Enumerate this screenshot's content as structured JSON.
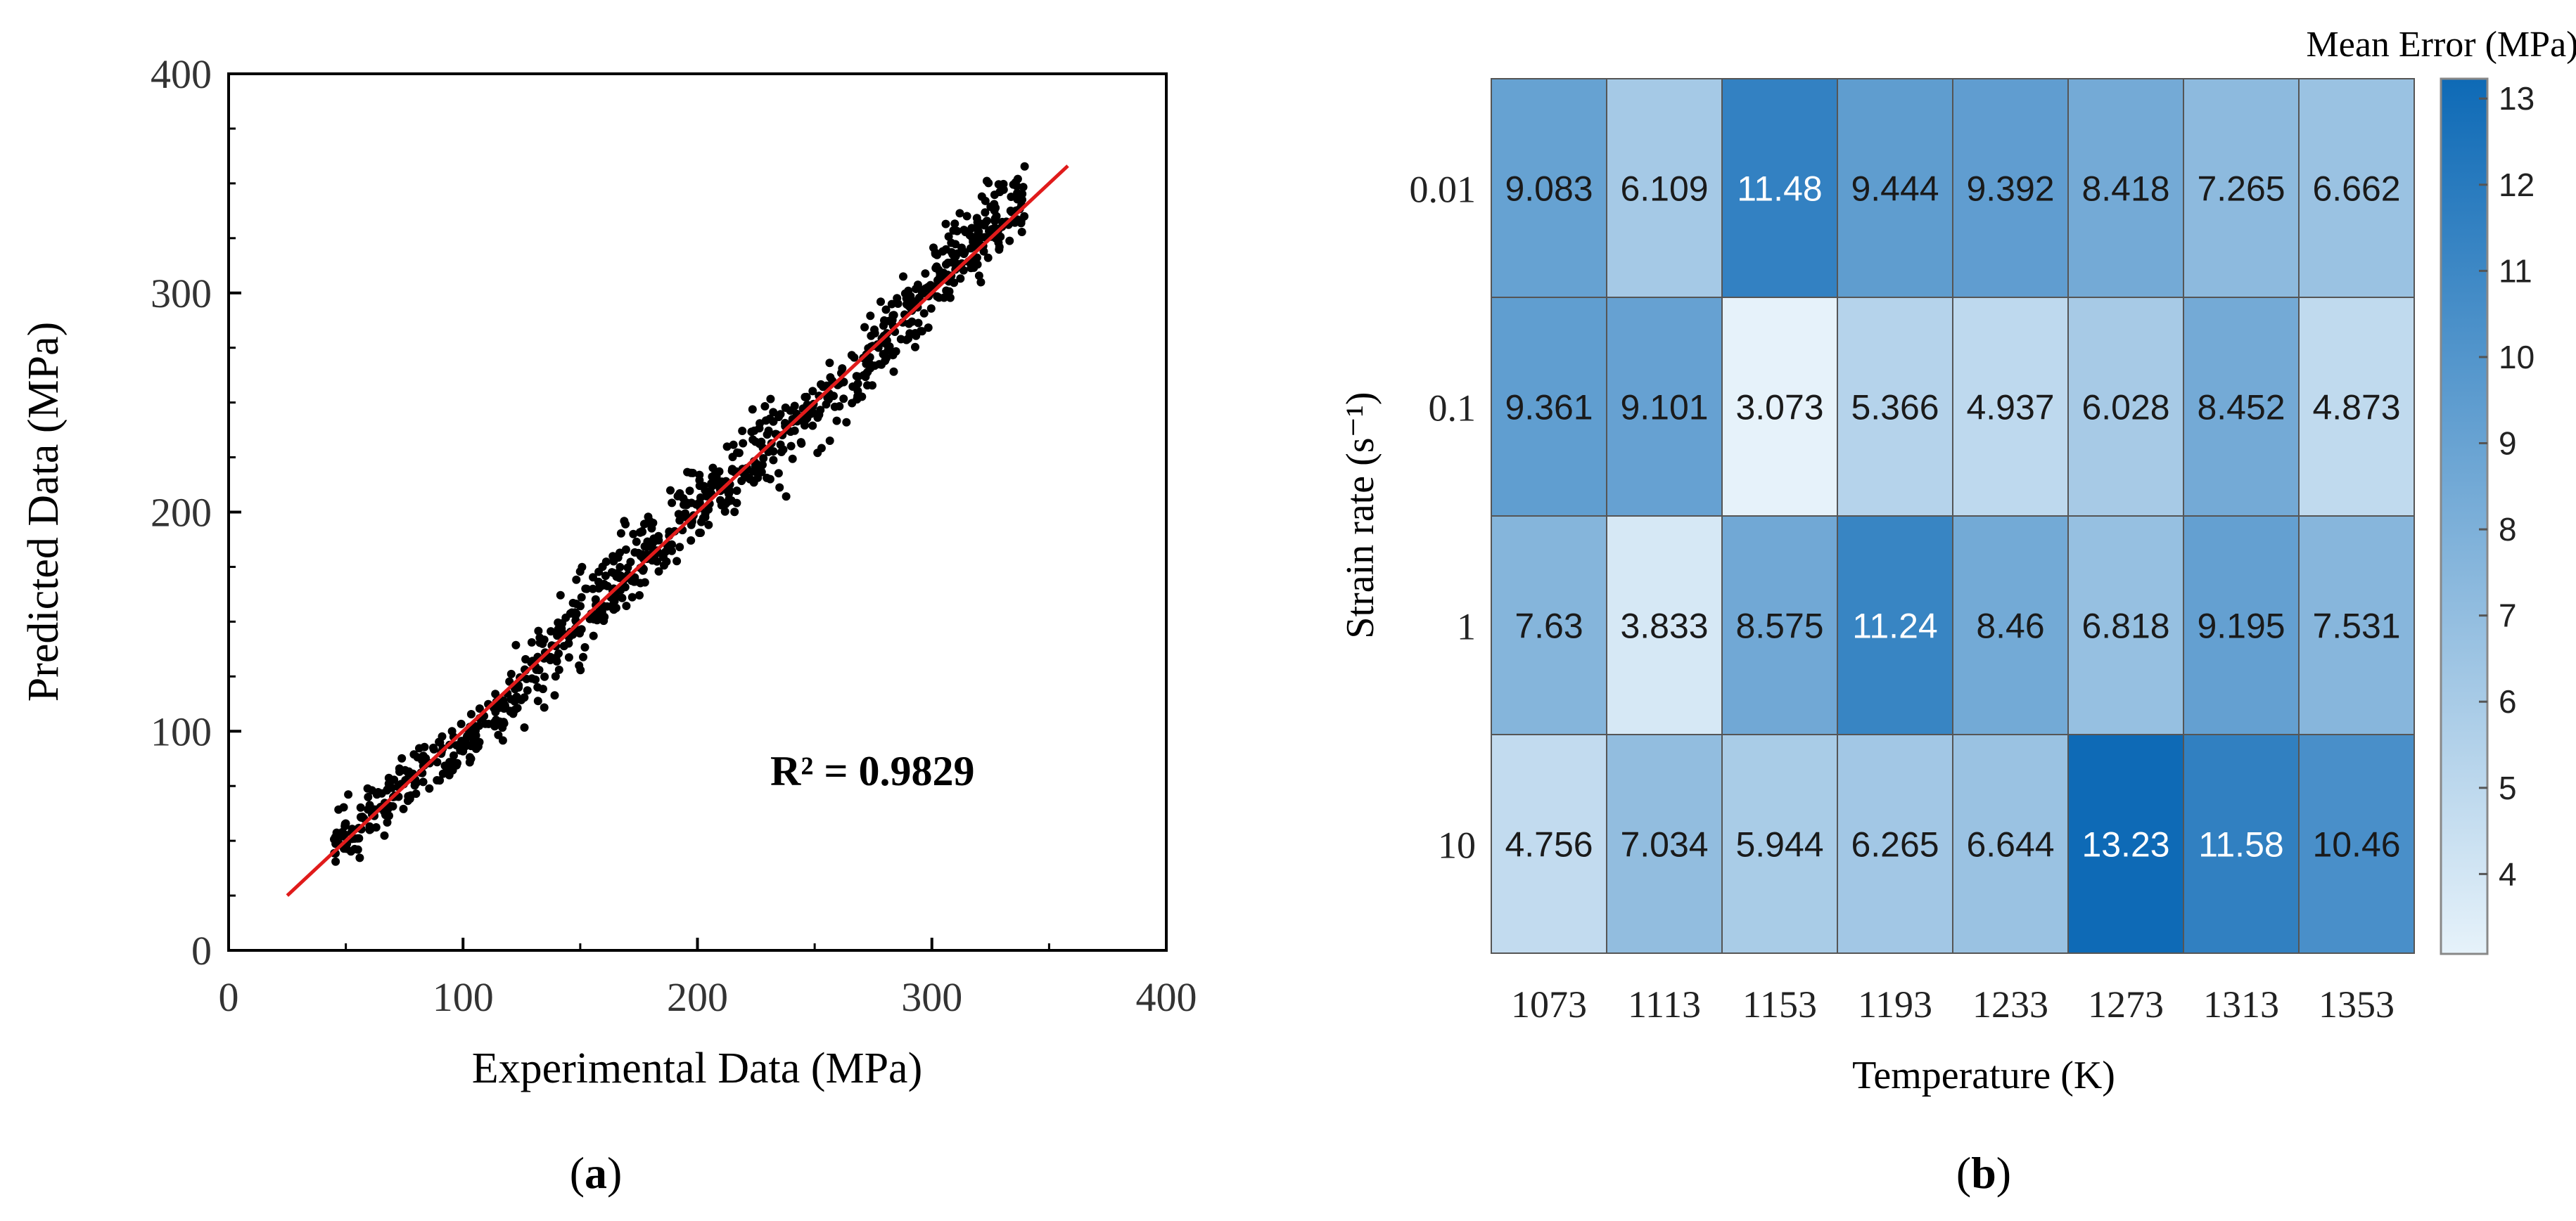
{
  "chart_data": [
    {
      "type": "scatter",
      "panel_label": "a",
      "title": "",
      "xlabel": "Experimental Data (MPa)",
      "ylabel": "Predicted Data (MPa)",
      "xlim": [
        0,
        400
      ],
      "ylim": [
        0,
        400
      ],
      "xticks": [
        "0",
        "100",
        "200",
        "300",
        "400"
      ],
      "yticks": [
        "0",
        "100",
        "200",
        "300",
        "400"
      ],
      "grid": false,
      "annotation": "R² = 0.9829",
      "point_color": "#000000",
      "fit_line": {
        "x": [
          25,
          358
        ],
        "y": [
          25,
          358
        ],
        "color": "#e01b1b"
      },
      "point_distribution": {
        "count": 900,
        "x_range": [
          45,
          340
        ],
        "residual_sd": 9,
        "description_free": true
      }
    },
    {
      "type": "heatmap",
      "panel_label": "b",
      "title": "",
      "xlabel": "Temperature (K)",
      "ylabel": "Strain rate (s⁻¹)",
      "x": [
        "1073",
        "1113",
        "1153",
        "1193",
        "1233",
        "1273",
        "1313",
        "1353"
      ],
      "y": [
        "0.01",
        "0.1",
        "1",
        "10"
      ],
      "values": [
        [
          9.083,
          6.109,
          11.48,
          9.444,
          9.392,
          8.418,
          7.265,
          6.662
        ],
        [
          9.361,
          9.101,
          3.073,
          5.366,
          4.937,
          6.028,
          8.452,
          4.873
        ],
        [
          7.63,
          3.833,
          8.575,
          11.24,
          8.46,
          6.818,
          9.195,
          7.531
        ],
        [
          4.756,
          7.034,
          5.944,
          6.265,
          6.644,
          13.23,
          11.58,
          10.46
        ]
      ],
      "cell_labels": [
        [
          "9.083",
          "6.109",
          "11.48",
          "9.444",
          "9.392",
          "8.418",
          "7.265",
          "6.662"
        ],
        [
          "9.361",
          "9.101",
          "3.073",
          "5.366",
          "4.937",
          "6.028",
          "8.452",
          "4.873"
        ],
        [
          "7.63",
          "3.833",
          "8.575",
          "11.24",
          "8.46",
          "6.818",
          "9.195",
          "7.531"
        ],
        [
          "4.756",
          "7.034",
          "5.944",
          "6.265",
          "6.644",
          "13.23",
          "11.58",
          "10.46"
        ]
      ],
      "colorbar": {
        "title": "Mean Error (MPa)",
        "range": [
          3.073,
          13.23
        ],
        "ticks": [
          4,
          5,
          6,
          7,
          8,
          9,
          10,
          11,
          12,
          13
        ],
        "tick_labels": [
          "4",
          "5",
          "6",
          "7",
          "8",
          "9",
          "10",
          "11",
          "12",
          "13"
        ],
        "colors": [
          "#e6f2fa",
          "#0e6ab6"
        ]
      }
    }
  ]
}
